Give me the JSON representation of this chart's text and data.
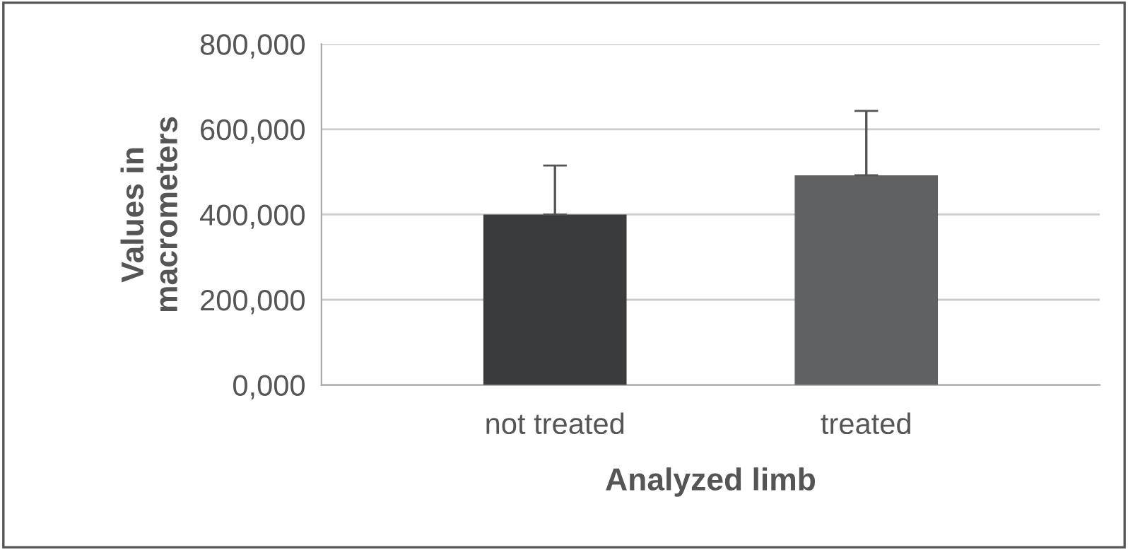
{
  "chart_data": {
    "type": "bar",
    "xlabel": "Analyzed limb",
    "ylabel": "Values in\nmacrometers",
    "categories": [
      "not treated",
      "treated"
    ],
    "values": [
      400000,
      492000
    ],
    "colors": [
      "#3a3b3d",
      "#606163"
    ],
    "errors": [
      [
        400000,
        515000
      ],
      [
        492000,
        643000
      ]
    ],
    "ylim": [
      0,
      800000
    ],
    "yticks": [
      {
        "value": 0,
        "label": "0,000"
      },
      {
        "value": 200000,
        "label": "200,000"
      },
      {
        "value": 400000,
        "label": "400,000"
      },
      {
        "value": 600000,
        "label": "600,000"
      },
      {
        "value": 800000,
        "label": "800,000"
      }
    ],
    "grid": "y"
  }
}
